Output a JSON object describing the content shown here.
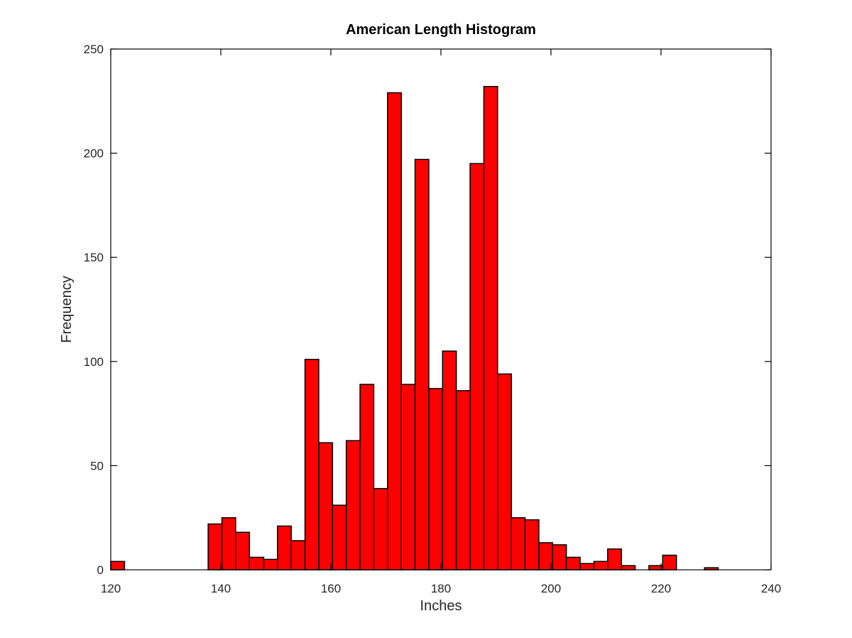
{
  "chart_data": {
    "type": "bar",
    "title": "American Length Histogram",
    "xlabel": "Inches",
    "ylabel": "Frequency",
    "xlim": [
      120,
      240
    ],
    "ylim": [
      0,
      250
    ],
    "xticks": [
      "120",
      "140",
      "160",
      "180",
      "200",
      "220",
      "240"
    ],
    "yticks": [
      "0",
      "50",
      "100",
      "150",
      "200",
      "250"
    ],
    "bar_color": "#ff0000",
    "edge_color": "#000000",
    "grid": false,
    "bins": [
      {
        "x0": 120.0,
        "x1": 122.5,
        "value": 4
      },
      {
        "x0": 137.7,
        "x1": 140.2,
        "value": 22
      },
      {
        "x0": 140.2,
        "x1": 142.7,
        "value": 25
      },
      {
        "x0": 142.7,
        "x1": 145.2,
        "value": 18
      },
      {
        "x0": 145.2,
        "x1": 147.8,
        "value": 6
      },
      {
        "x0": 147.8,
        "x1": 150.3,
        "value": 5
      },
      {
        "x0": 150.3,
        "x1": 152.8,
        "value": 21
      },
      {
        "x0": 152.8,
        "x1": 155.3,
        "value": 14
      },
      {
        "x0": 155.3,
        "x1": 157.8,
        "value": 101
      },
      {
        "x0": 157.8,
        "x1": 160.3,
        "value": 61
      },
      {
        "x0": 160.3,
        "x1": 162.8,
        "value": 31
      },
      {
        "x0": 162.8,
        "x1": 165.3,
        "value": 62
      },
      {
        "x0": 165.3,
        "x1": 167.8,
        "value": 89
      },
      {
        "x0": 167.8,
        "x1": 170.3,
        "value": 39
      },
      {
        "x0": 170.3,
        "x1": 172.8,
        "value": 229
      },
      {
        "x0": 172.8,
        "x1": 175.3,
        "value": 89
      },
      {
        "x0": 175.3,
        "x1": 177.8,
        "value": 197
      },
      {
        "x0": 177.8,
        "x1": 180.3,
        "value": 87
      },
      {
        "x0": 180.3,
        "x1": 182.8,
        "value": 105
      },
      {
        "x0": 182.8,
        "x1": 185.3,
        "value": 86
      },
      {
        "x0": 185.3,
        "x1": 187.8,
        "value": 195
      },
      {
        "x0": 187.8,
        "x1": 190.3,
        "value": 232
      },
      {
        "x0": 190.3,
        "x1": 192.8,
        "value": 94
      },
      {
        "x0": 192.8,
        "x1": 195.3,
        "value": 25
      },
      {
        "x0": 195.3,
        "x1": 197.8,
        "value": 24
      },
      {
        "x0": 197.8,
        "x1": 200.3,
        "value": 13
      },
      {
        "x0": 200.3,
        "x1": 202.8,
        "value": 12
      },
      {
        "x0": 202.8,
        "x1": 205.3,
        "value": 6
      },
      {
        "x0": 205.3,
        "x1": 207.8,
        "value": 3
      },
      {
        "x0": 207.8,
        "x1": 210.3,
        "value": 4
      },
      {
        "x0": 210.3,
        "x1": 212.8,
        "value": 10
      },
      {
        "x0": 212.8,
        "x1": 215.3,
        "value": 2
      },
      {
        "x0": 217.8,
        "x1": 220.3,
        "value": 2
      },
      {
        "x0": 220.3,
        "x1": 222.8,
        "value": 7
      },
      {
        "x0": 227.9,
        "x1": 230.4,
        "value": 1
      }
    ]
  }
}
